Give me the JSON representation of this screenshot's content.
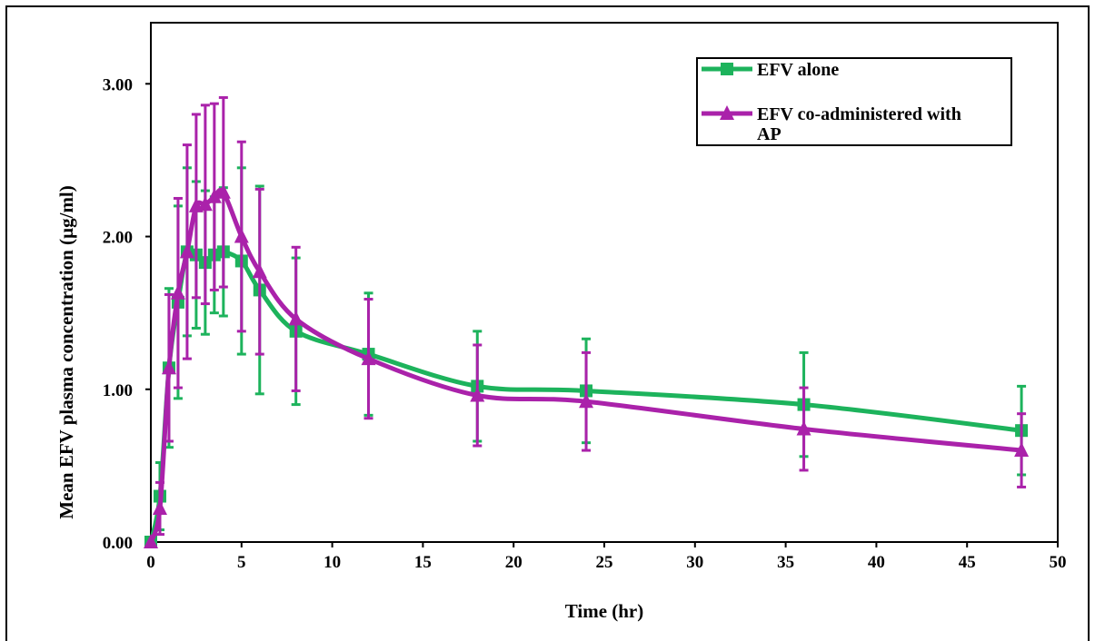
{
  "chart_data": {
    "type": "line",
    "xlabel": "Time (hr)",
    "ylabel": "Mean EFV plasma concentration (µg/ml)",
    "xlim": [
      0,
      50
    ],
    "ylim": [
      0,
      3.4
    ],
    "x_ticks": [
      "0",
      "5",
      "10",
      "15",
      "20",
      "25",
      "30",
      "35",
      "40",
      "45",
      "50"
    ],
    "y_ticks": [
      "0.00",
      "1.00",
      "2.00",
      "3.00"
    ],
    "grid": false,
    "legend_position": "top-right",
    "series": [
      {
        "name": "EFV alone",
        "color": "#1db35c",
        "marker": "square",
        "x": [
          0,
          0.5,
          1,
          1.5,
          2,
          2.5,
          3,
          3.5,
          4,
          5,
          6,
          8,
          12,
          18,
          24,
          36,
          48
        ],
        "y": [
          0.0,
          0.3,
          1.14,
          1.57,
          1.9,
          1.88,
          1.83,
          1.88,
          1.9,
          1.84,
          1.65,
          1.38,
          1.23,
          1.02,
          0.99,
          0.9,
          0.73
        ],
        "err": [
          0.0,
          0.22,
          0.52,
          0.63,
          0.55,
          0.48,
          0.47,
          0.38,
          0.42,
          0.61,
          0.68,
          0.48,
          0.4,
          0.36,
          0.34,
          0.34,
          0.29
        ]
      },
      {
        "name": "EFV co-administered with AP",
        "color": "#aa22aa",
        "marker": "triangle",
        "x": [
          0,
          0.5,
          1,
          1.5,
          2,
          2.5,
          3,
          3.5,
          4,
          5,
          6,
          8,
          12,
          18,
          24,
          36,
          48
        ],
        "y": [
          0.0,
          0.22,
          1.14,
          1.63,
          1.9,
          2.2,
          2.21,
          2.26,
          2.29,
          2.0,
          1.77,
          1.46,
          1.2,
          0.96,
          0.92,
          0.74,
          0.6
        ],
        "err": [
          0.0,
          0.17,
          0.48,
          0.62,
          0.7,
          0.6,
          0.65,
          0.61,
          0.62,
          0.62,
          0.54,
          0.47,
          0.39,
          0.33,
          0.32,
          0.27,
          0.24
        ]
      }
    ]
  }
}
